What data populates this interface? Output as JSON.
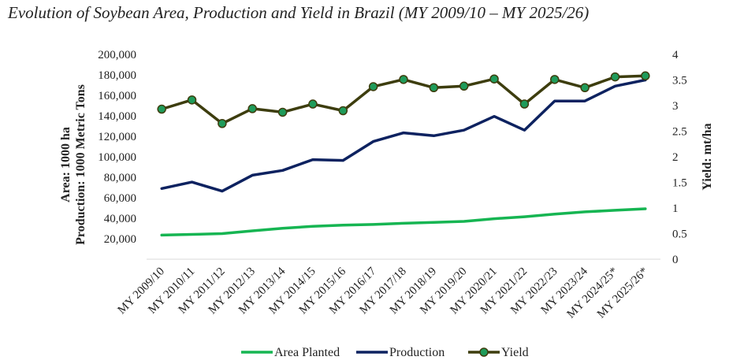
{
  "chart_data": {
    "type": "line",
    "title": "Evolution of Soybean Area, Production and Yield in Brazil (MY 2009/10 – MY 2025/26)",
    "categories": [
      "MY 2009/10",
      "MY 2010/11",
      "MY 2011/12",
      "MY 2012/13",
      "MY 2013/14",
      "MY 2014/15",
      "MY 2015/16",
      "MY 2016/17",
      "MY 2017/18",
      "MY 2018/19",
      "MY 2019/20",
      "MY 2020/21",
      "MY 2021/22",
      "MY 2022/23",
      "MY 2023/24",
      "MY 2024/25*",
      "MY 2025/26*"
    ],
    "left_axis": {
      "label_line1": "Area: 1000 ha",
      "label_line2": "Production: 1000 Metric Tons",
      "range": [
        0,
        200000
      ],
      "ticks": [
        20000,
        40000,
        60000,
        80000,
        100000,
        120000,
        140000,
        160000,
        180000,
        200000
      ],
      "tick_labels": [
        "20,000",
        "40,000",
        "60,000",
        "80,000",
        "100,000",
        "120,000",
        "140,000",
        "160,000",
        "180,000",
        "200,000"
      ]
    },
    "right_axis": {
      "label": "Yield: mt/ha",
      "range": [
        0,
        4
      ],
      "ticks": [
        0,
        0.5,
        1,
        1.5,
        2,
        2.5,
        3,
        3.5,
        4
      ],
      "tick_labels": [
        "0",
        "0.5",
        "1",
        "1.5",
        "2",
        "2.5",
        "3",
        "3.5",
        "4"
      ]
    },
    "series": [
      {
        "name": "Area Planted",
        "axis": "left",
        "color": "#16b552",
        "values": [
          23500,
          24200,
          25000,
          27700,
          30200,
          32100,
          33200,
          33900,
          35100,
          35900,
          36900,
          39500,
          41500,
          44000,
          46200,
          47800,
          49200
        ]
      },
      {
        "name": "Production",
        "axis": "left",
        "color": "#0d2260",
        "values": [
          69000,
          75300,
          66500,
          82000,
          86700,
          97200,
          96500,
          114900,
          123400,
          120500,
          126000,
          139500,
          126000,
          154500,
          154500,
          169000,
          175000
        ]
      },
      {
        "name": "Yield",
        "axis": "right",
        "color": "#3d3d0e",
        "marker_color": "#1f9b5a",
        "values": [
          2.93,
          3.11,
          2.65,
          2.94,
          2.87,
          3.03,
          2.9,
          3.37,
          3.51,
          3.35,
          3.38,
          3.52,
          3.03,
          3.51,
          3.35,
          3.56,
          3.58
        ]
      }
    ],
    "legend_position": "bottom",
    "grid": false
  }
}
